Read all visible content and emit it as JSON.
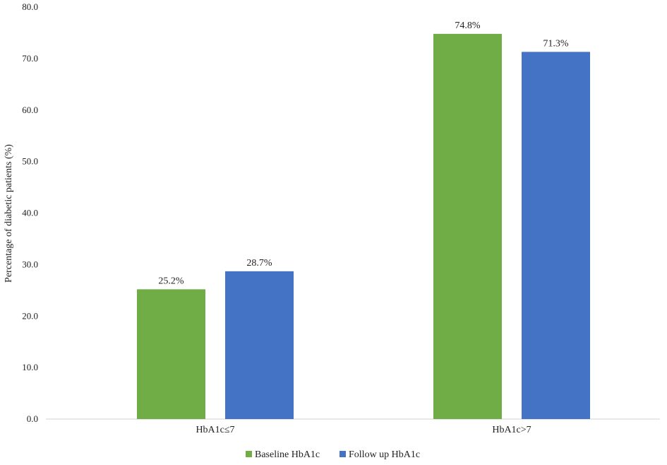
{
  "chart_data": {
    "type": "bar",
    "title": "",
    "xlabel": "",
    "ylabel": "Percentage of diabetic patients (%)",
    "ylim": [
      0,
      80
    ],
    "yticks": [
      0,
      10,
      20,
      30,
      40,
      50,
      60,
      70,
      80
    ],
    "ytick_labels": [
      "0.0",
      "10.0",
      "20.0",
      "30.0",
      "40.0",
      "50.0",
      "60.0",
      "70.0",
      "80.0"
    ],
    "categories": [
      "HbA1c≤7",
      "HbA1c>7"
    ],
    "series": [
      {
        "name": "Baseline HbA1c",
        "color": "#70AD47",
        "values": [
          25.2,
          74.8
        ],
        "labels": [
          "25.2%",
          "74.8%"
        ]
      },
      {
        "name": "Follow up HbA1c",
        "color": "#4472C4",
        "values": [
          28.7,
          71.3
        ],
        "labels": [
          "28.7%",
          "71.3%"
        ]
      }
    ],
    "grid": false,
    "legend": "bottom"
  }
}
